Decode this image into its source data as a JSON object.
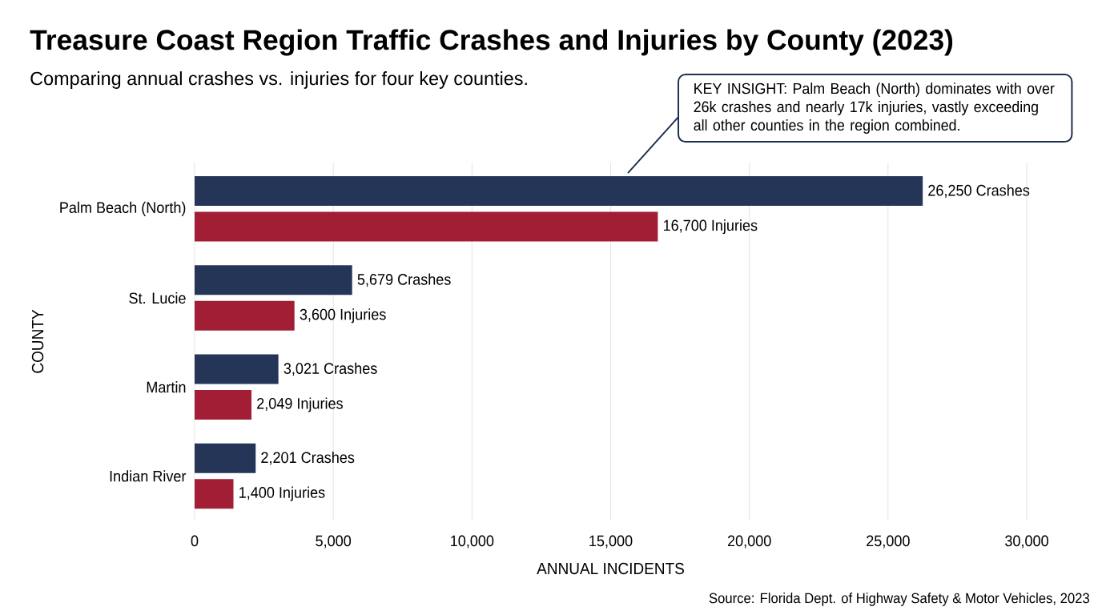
{
  "chart_data": {
    "type": "bar",
    "orientation": "horizontal",
    "title": "Treasure Coast Region Traffic Crashes and Injuries by County (2023)",
    "subtitle": "Comparing annual crashes vs. injuries for four key counties.",
    "xlabel": "ANNUAL INCIDENTS",
    "ylabel": "COUNTY",
    "categories": [
      "Palm Beach (North)",
      "St. Lucie",
      "Martin",
      "Indian River"
    ],
    "series": [
      {
        "color": "#243558",
        "values": [
          26250,
          5679,
          3021,
          2201
        ],
        "value_labels": [
          "26,250 Crashes",
          "5,679 Crashes",
          "3,021 Crashes",
          "2,201 Crashes"
        ]
      },
      {
        "color": "#a21e35",
        "values": [
          16700,
          3600,
          2049,
          1400
        ],
        "value_labels": [
          "16,700 Injuries",
          "3,600 Injuries",
          "2,049 Injuries",
          "1,400 Injuries"
        ]
      }
    ],
    "xlim": [
      0,
      30000
    ],
    "xticks": [
      0,
      {
        "value": 5000,
        "label": "5,000"
      },
      {
        "value": 10000,
        "label": "10,000"
      },
      {
        "value": 15000,
        "label": "15,000"
      },
      {
        "value": 20000,
        "label": "20,000"
      },
      {
        "value": 25000,
        "label": "25,000"
      },
      {
        "value": 30000,
        "label": "30,000"
      }
    ],
    "grid": "x",
    "annotations": [
      "KEY INSIGHT: Palm Beach (North) dominates with over 26k crashes and nearly 17k injuries, vastly exceeding all other counties in the region combined.",
      "Source: Florida Dept. of Highway Safety & Motor Vehicles, 2023"
    ]
  }
}
